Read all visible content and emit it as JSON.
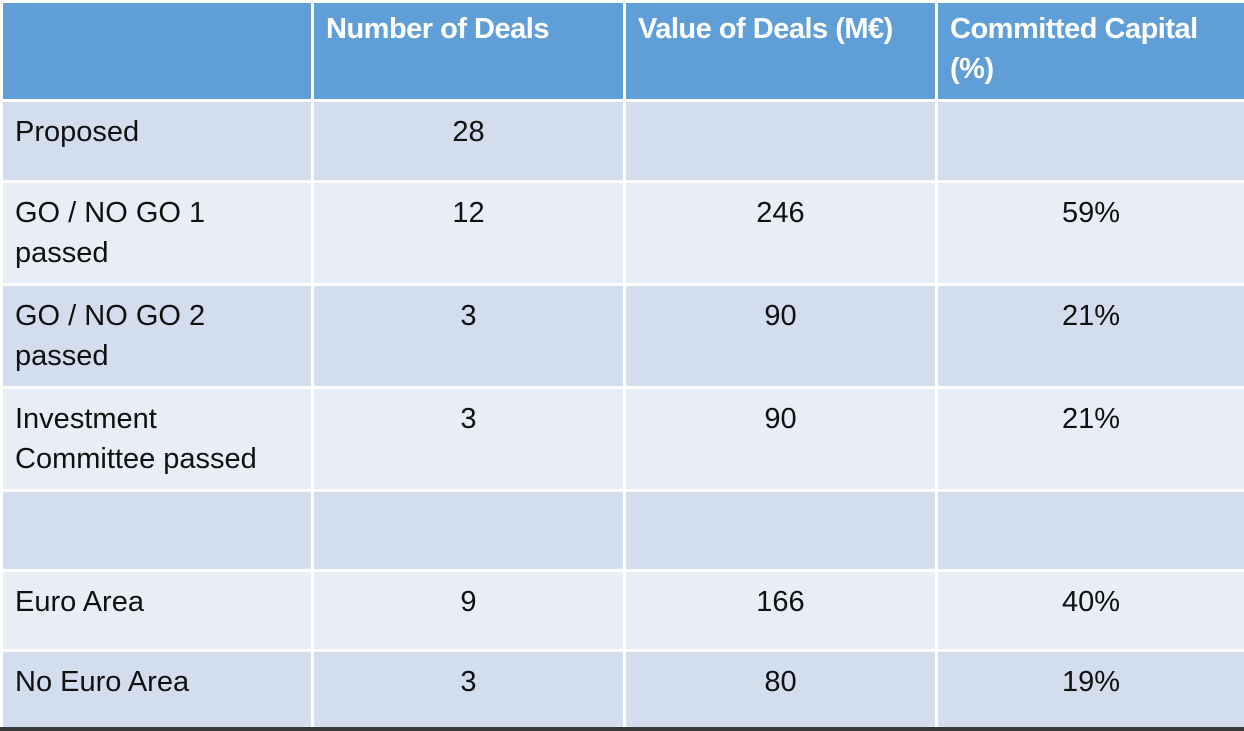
{
  "table": {
    "columns": [
      "Number of Deals",
      "Value of Deals (M€)",
      "Committed Capital (%)"
    ],
    "rows": [
      [
        "Proposed",
        28,
        null,
        null
      ],
      [
        "GO / NO GO 1 passed",
        12,
        246,
        "59%"
      ],
      [
        "GO / NO GO 2 passed",
        3,
        90,
        "21%"
      ],
      [
        "Investment Committee passed",
        3,
        90,
        "21%"
      ],
      [
        null,
        null,
        null,
        null
      ],
      [
        "Euro Area",
        9,
        166,
        "40%"
      ],
      [
        "No Euro Area",
        3,
        80,
        "19%"
      ]
    ]
  }
}
